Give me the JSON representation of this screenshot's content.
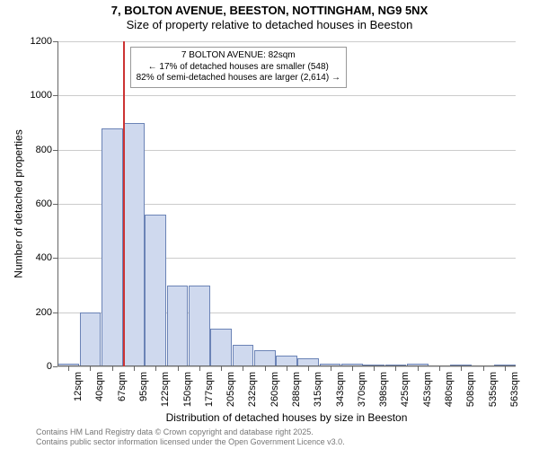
{
  "title": {
    "main": "7, BOLTON AVENUE, BEESTON, NOTTINGHAM, NG9 5NX",
    "sub": "Size of property relative to detached houses in Beeston"
  },
  "chart": {
    "type": "histogram",
    "background_color": "#ffffff",
    "grid_color": "#cccccc",
    "axis_color": "#666666",
    "bar_fill": "#cfd9ee",
    "bar_border": "#6b83b6",
    "marker_color": "#cc3333",
    "marker_category": "67sqm",
    "ylim": [
      0,
      1200
    ],
    "ytick_step": 200,
    "ylabel": "Number of detached properties",
    "xlabel": "Distribution of detached houses by size in Beeston",
    "label_fontsize": 12,
    "tick_fontsize": 11,
    "categories": [
      "12sqm",
      "40sqm",
      "67sqm",
      "95sqm",
      "122sqm",
      "150sqm",
      "177sqm",
      "205sqm",
      "232sqm",
      "260sqm",
      "288sqm",
      "315sqm",
      "343sqm",
      "370sqm",
      "398sqm",
      "425sqm",
      "453sqm",
      "480sqm",
      "508sqm",
      "535sqm",
      "563sqm"
    ],
    "values": [
      10,
      200,
      880,
      900,
      560,
      300,
      300,
      140,
      80,
      60,
      40,
      30,
      10,
      10,
      5,
      5,
      10,
      0,
      5,
      0,
      5
    ],
    "bar_width": 0.98
  },
  "annotation": {
    "line1": "7 BOLTON AVENUE: 82sqm",
    "line2": "← 17% of detached houses are smaller (548)",
    "line3": "82% of semi-detached houses are larger (2,614) →",
    "border_color": "#999999",
    "fontsize": 10
  },
  "footer": {
    "line1": "Contains HM Land Registry data © Crown copyright and database right 2025.",
    "line2": "Contains public sector information licensed under the Open Government Licence v3.0.",
    "color": "#777777"
  }
}
